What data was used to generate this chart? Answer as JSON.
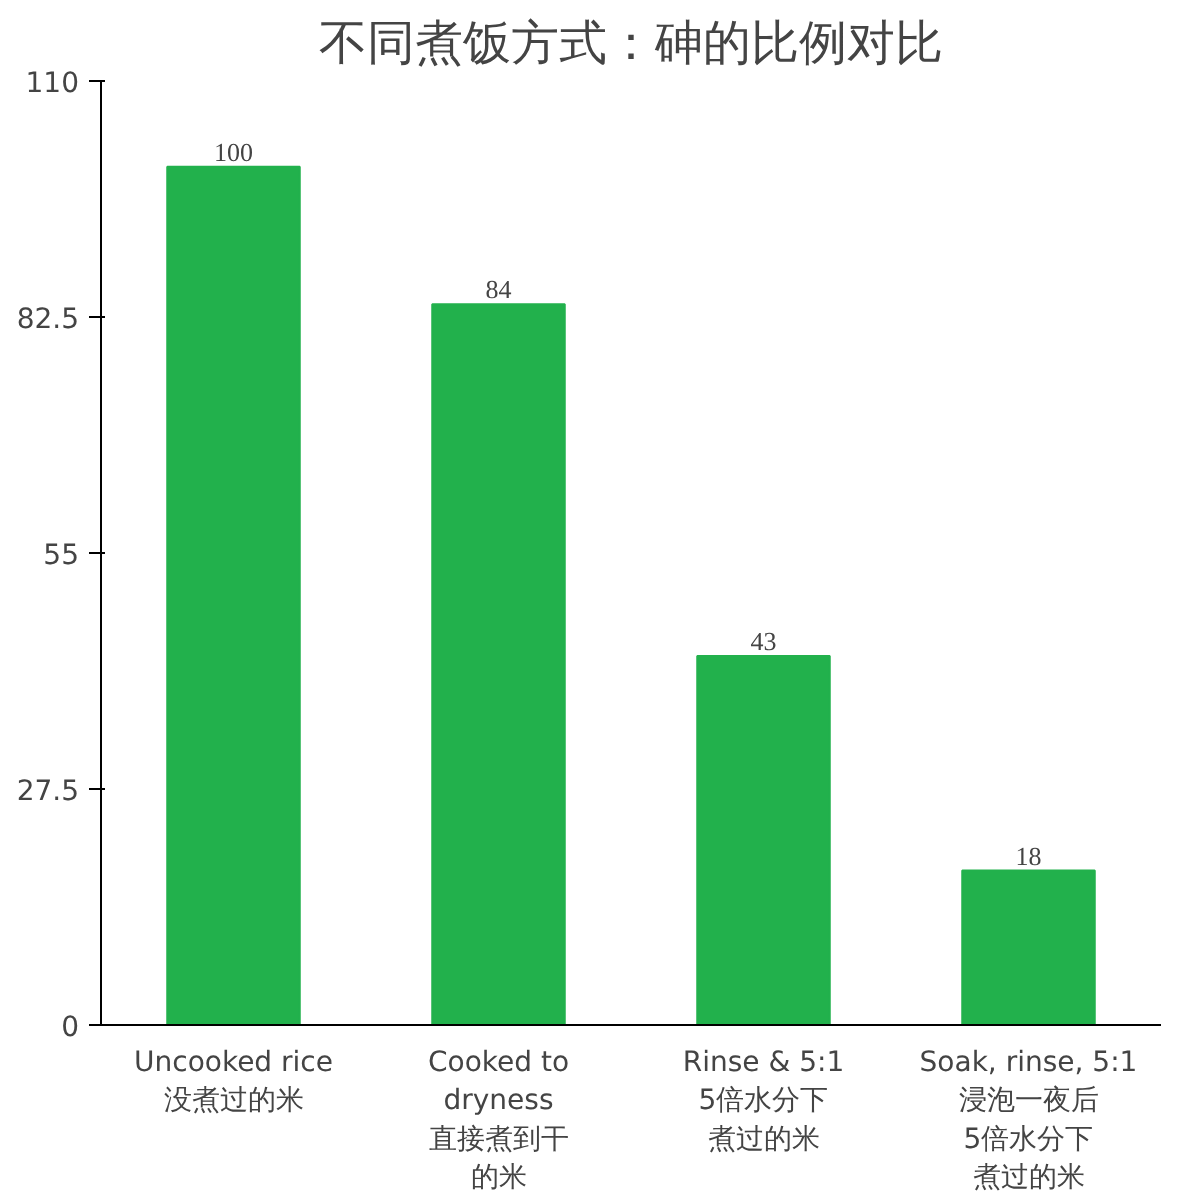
{
  "chart_data": {
    "type": "bar",
    "title": "不同煮饭方式：砷的比例对比",
    "categories": [
      "Uncooked rice\n没煮过的米",
      "Cooked to\ndryness\n直接煮到干的米",
      "Rinse & 5:1\n5倍水分下煮过的米",
      "Soak, rinse, 5:1\n浸泡一夜后5倍水分下煮过的米"
    ],
    "values": [
      100,
      84,
      43,
      18
    ],
    "color": "#22b14c",
    "ylim": [
      0,
      110
    ],
    "yticks": [
      0,
      27.5,
      55,
      82.5,
      110
    ],
    "grid": false,
    "data_labels": true
  }
}
